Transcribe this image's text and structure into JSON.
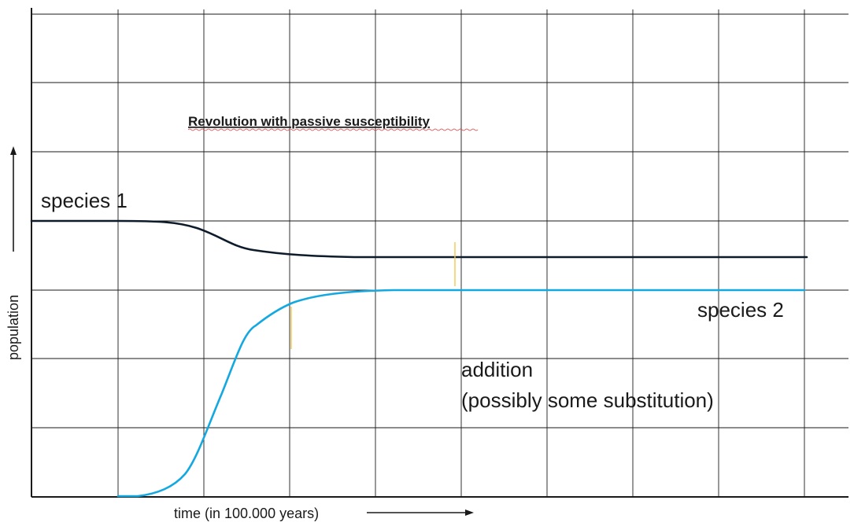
{
  "title": "Revolution with passive susceptibility",
  "x_axis_label": "time (in 100.000 years)",
  "y_axis_label": "population",
  "species_1_label": "species 1",
  "species_2_label": "species 2",
  "annotation_line_1": "addition",
  "annotation_line_2": "(possibly some substitution)",
  "colors": {
    "grid": "#1a1a1a",
    "species_1": "#0d1b2a",
    "species_2": "#14a8e0",
    "marker": "#f2c94c",
    "spellcheck": "#e03a3a"
  }
}
